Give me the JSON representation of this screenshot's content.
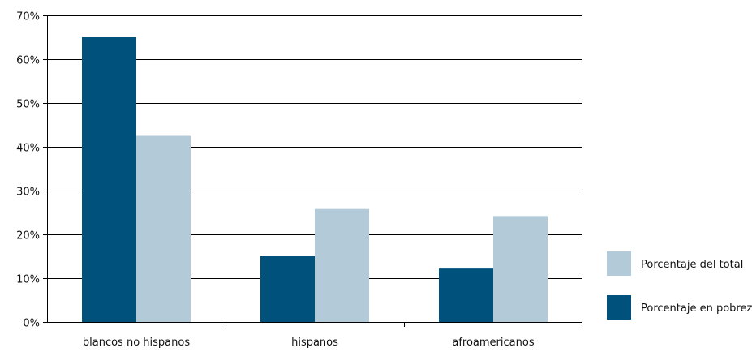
{
  "chart_data": {
    "type": "bar",
    "categories": [
      "blancos no hispanos",
      "hispanos",
      "afroamericanos"
    ],
    "series": [
      {
        "name": "Porcentaje en pobreza",
        "values": [
          65,
          15,
          12.2
        ],
        "color": "#00527c"
      },
      {
        "name": "Porcentaje del total",
        "values": [
          42.5,
          25.8,
          24.2
        ],
        "color": "#b3cbd8"
      }
    ],
    "ylim": [
      0,
      70
    ],
    "yticks": [
      0,
      10,
      20,
      30,
      40,
      50,
      60,
      70
    ],
    "ytick_labels": [
      "0%",
      "10%",
      "20%",
      "30%",
      "40%",
      "50%",
      "60%",
      "70%"
    ],
    "grid": true,
    "legend": {
      "position": "right",
      "order": [
        "Porcentaje del total",
        "Porcentaje en pobreza"
      ]
    }
  }
}
